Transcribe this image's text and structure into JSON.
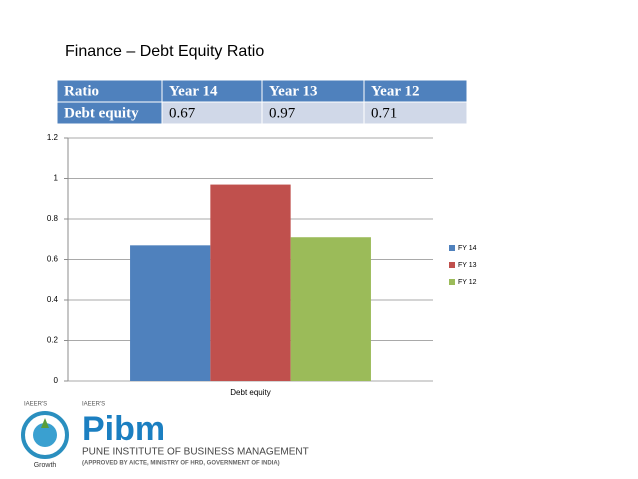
{
  "title": "Finance – Debt Equity Ratio",
  "table": {
    "header": [
      "Ratio",
      "Year 14",
      "Year 13",
      "Year 12"
    ],
    "rows": [
      [
        "Debt equity",
        "0.67",
        "0.97",
        "0.71"
      ]
    ]
  },
  "chart_data": {
    "type": "bar",
    "categories": [
      "Debt equity"
    ],
    "series": [
      {
        "name": "FY 14",
        "color": "#4f81bd",
        "values": [
          0.67
        ]
      },
      {
        "name": "FY 13",
        "color": "#c0504d",
        "values": [
          0.97
        ]
      },
      {
        "name": "FY 12",
        "color": "#9bbb59",
        "values": [
          0.71
        ]
      }
    ],
    "ylim": [
      0,
      1.2
    ],
    "yticks": [
      0,
      0.2,
      0.4,
      0.6,
      0.8,
      1,
      1.2
    ],
    "grid": true,
    "legend": "right"
  },
  "logo": {
    "left_caption": "IAEER'S",
    "right_caption": "IAEER'S",
    "growth": "Growth",
    "brand": "Pibm",
    "name": "PUNE INSTITUTE OF BUSINESS MANAGEMENT",
    "approval": "(APPROVED BY AICTE, MINISTRY OF HRD, GOVERNMENT OF INDIA)"
  }
}
